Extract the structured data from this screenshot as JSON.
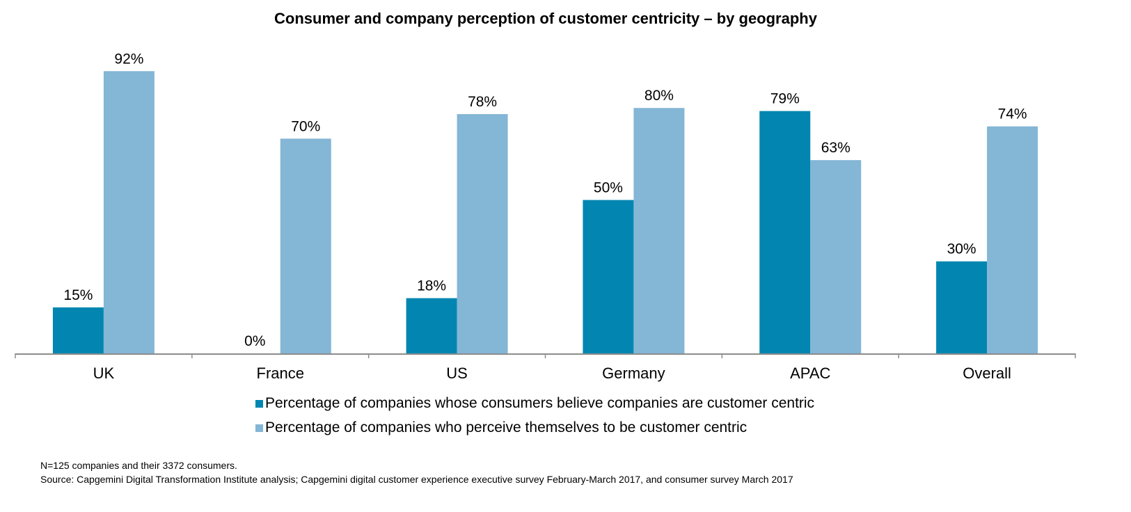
{
  "chart_data": {
    "type": "bar",
    "title": "Consumer and company perception of customer centricity – by geography",
    "xlabel": "",
    "ylabel": "",
    "ylim": [
      0,
      100
    ],
    "grid": false,
    "legend_position": "bottom",
    "categories": [
      "UK",
      "France",
      "US",
      "Germany",
      "APAC",
      "Overall"
    ],
    "series": [
      {
        "name": "Percentage of companies whose consumers believe companies are customer centric",
        "color": "#0286B1",
        "values": [
          15,
          0,
          18,
          50,
          79,
          30
        ],
        "labels": [
          "15%",
          "0%",
          "18%",
          "50%",
          "79%",
          "30%"
        ]
      },
      {
        "name": "Percentage of companies who perceive themselves to be customer centric",
        "color": "#84B6D6",
        "values": [
          92,
          70,
          78,
          80,
          63,
          74
        ],
        "labels": [
          "92%",
          "70%",
          "78%",
          "80%",
          "63%",
          "74%"
        ]
      }
    ]
  },
  "footnotes": {
    "note": "N=125 companies and their 3372 consumers.",
    "source": "Source: Capgemini Digital Transformation Institute analysis; Capgemini digital customer experience executive survey February-March 2017, and consumer survey March 2017"
  },
  "colors": {
    "axis": "#8C8C8C",
    "text": "#000000"
  }
}
